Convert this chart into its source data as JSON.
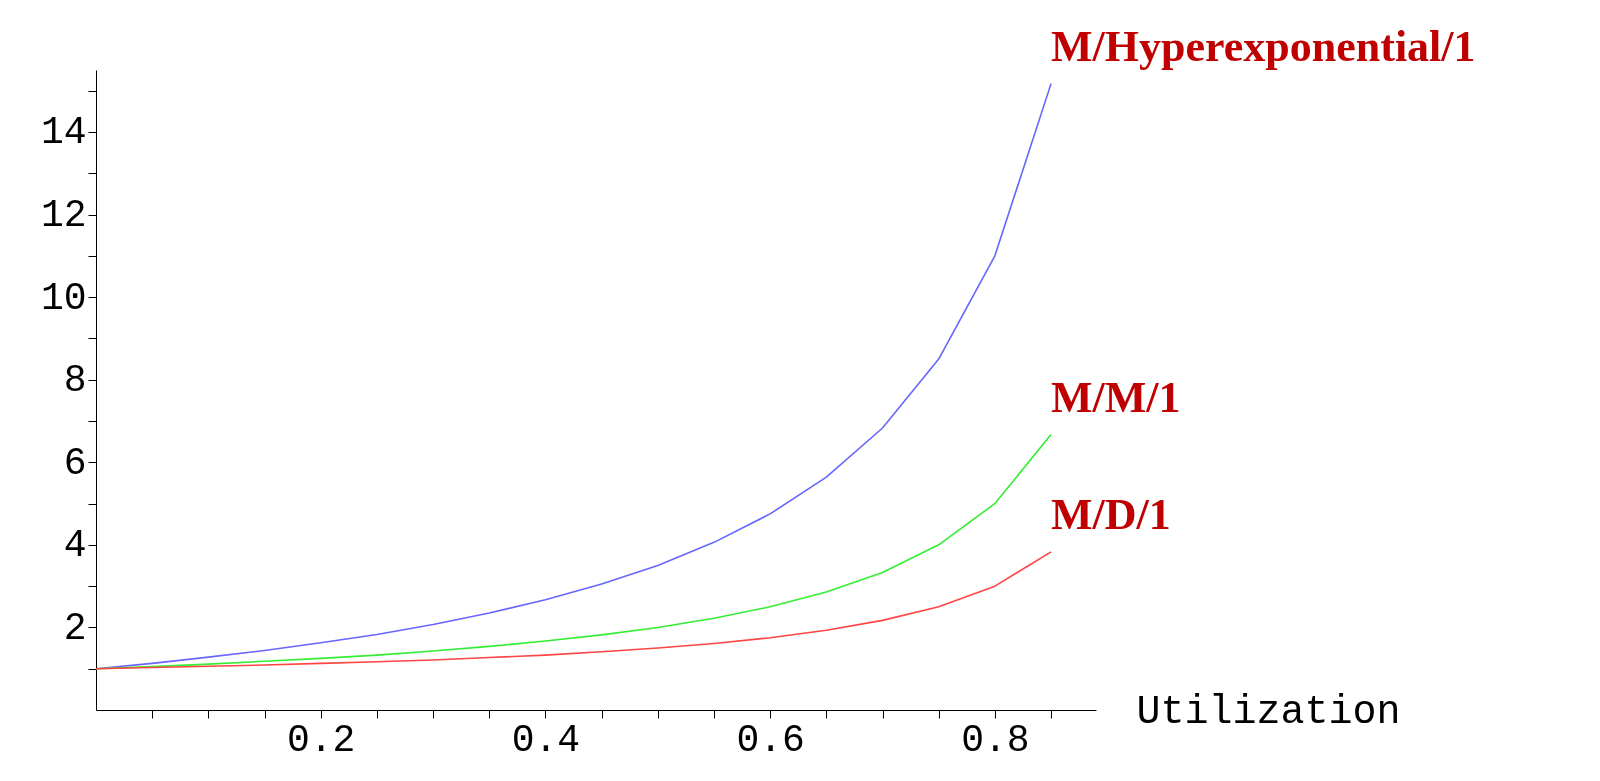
{
  "chart_data": {
    "type": "line",
    "xlabel": "Utilization",
    "x": [
      0,
      0.05,
      0.1,
      0.15,
      0.2,
      0.25,
      0.3,
      0.35,
      0.4,
      0.45,
      0.5,
      0.55,
      0.6,
      0.65,
      0.7,
      0.75,
      0.8,
      0.85
    ],
    "series": [
      {
        "name": "M/Hyperexponential/1",
        "color": "#6666ff",
        "values": [
          1,
          1.13,
          1.28,
          1.44,
          1.63,
          1.83,
          2.07,
          2.35,
          2.67,
          3.05,
          3.5,
          4.06,
          4.75,
          5.64,
          6.83,
          8.5,
          11,
          15.17
        ]
      },
      {
        "name": "M/M/1",
        "color": "#33ee33",
        "values": [
          1,
          1.05,
          1.11,
          1.18,
          1.25,
          1.33,
          1.43,
          1.54,
          1.67,
          1.82,
          2,
          2.22,
          2.5,
          2.86,
          3.33,
          4,
          5,
          6.67
        ]
      },
      {
        "name": "M/D/1",
        "color": "#ff4444",
        "values": [
          1,
          1.03,
          1.06,
          1.09,
          1.13,
          1.17,
          1.21,
          1.27,
          1.33,
          1.41,
          1.5,
          1.61,
          1.75,
          1.93,
          2.17,
          2.5,
          3,
          3.83
        ]
      }
    ],
    "xlim": [
      0,
      0.89
    ],
    "ylim": [
      0,
      15.5
    ],
    "xticks": [
      {
        "value": 0.05,
        "label": null
      },
      {
        "value": 0.1,
        "label": null
      },
      {
        "value": 0.15,
        "label": null
      },
      0.2,
      {
        "value": 0.25,
        "label": null
      },
      {
        "value": 0.3,
        "label": null
      },
      {
        "value": 0.35,
        "label": null
      },
      0.4,
      {
        "value": 0.45,
        "label": null
      },
      {
        "value": 0.5,
        "label": null
      },
      {
        "value": 0.55,
        "label": null
      },
      0.6,
      {
        "value": 0.65,
        "label": null
      },
      {
        "value": 0.7,
        "label": null
      },
      {
        "value": 0.75,
        "label": null
      },
      0.8,
      {
        "value": 0.85,
        "label": null
      }
    ],
    "yticks": [
      {
        "value": 1,
        "label": null
      },
      2,
      {
        "value": 3,
        "label": null
      },
      4,
      {
        "value": 5,
        "label": null
      },
      6,
      {
        "value": 7,
        "label": null
      },
      8,
      {
        "value": 9,
        "label": null
      },
      10,
      {
        "value": 11,
        "label": null
      },
      12,
      {
        "value": 13,
        "label": null
      },
      14,
      {
        "value": 15,
        "label": null
      }
    ],
    "grid": false,
    "line_style": "solid"
  }
}
